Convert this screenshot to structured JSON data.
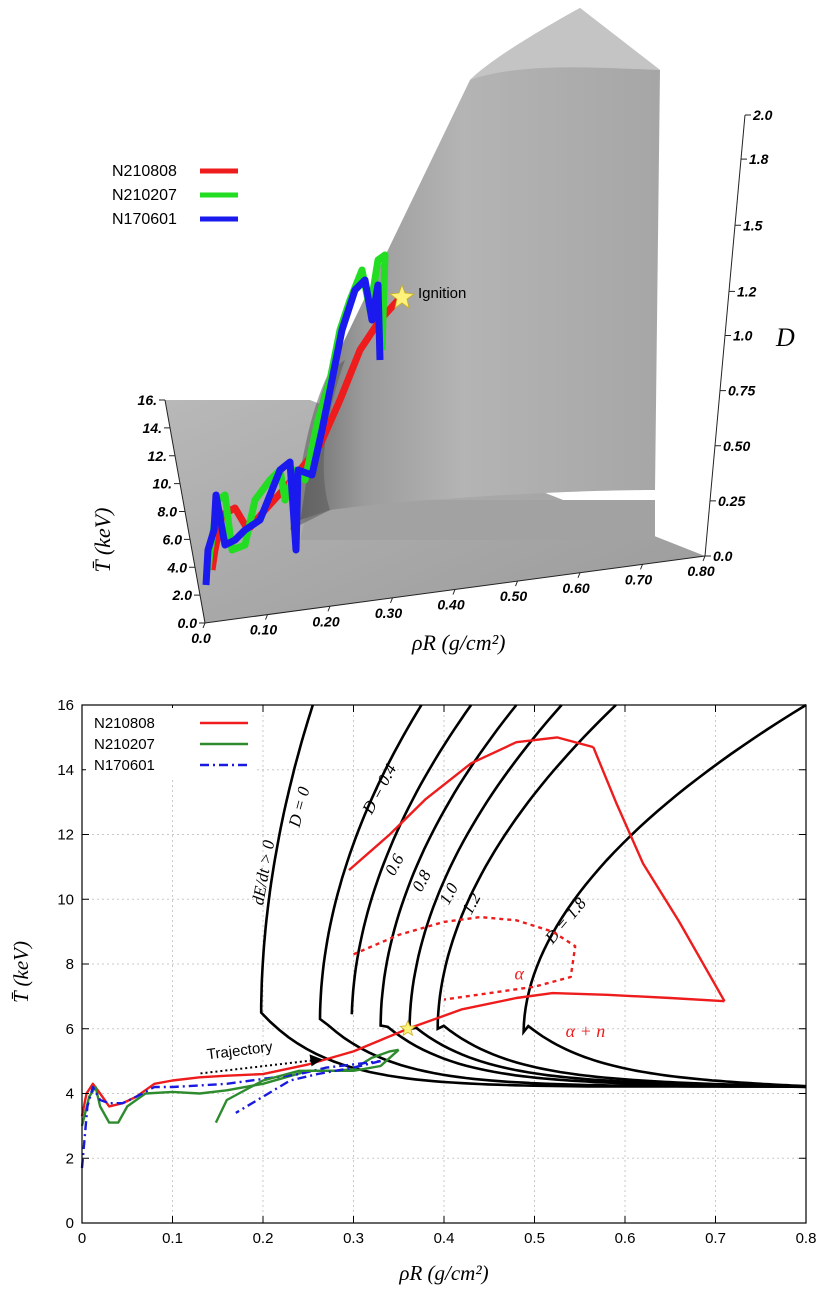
{
  "top_panel": {
    "legend": [
      {
        "name": "N210808",
        "color": "#ee1c1c"
      },
      {
        "name": "N210207",
        "color": "#22dd22"
      },
      {
        "name": "N170601",
        "color": "#1a1aee"
      }
    ],
    "ignition_label": "Ignition",
    "x_title": "ρR  (g/cm²)",
    "y_title": "T̄  (keV)",
    "z_title": "D",
    "x_ticks": [
      "0.0",
      "0.10",
      "0.20",
      "0.30",
      "0.40",
      "0.50",
      "0.60",
      "0.70",
      "0.80"
    ],
    "y_ticks": [
      "0.0",
      "2.0",
      "4.0",
      "6.0",
      "8.0",
      "10.",
      "12.",
      "14.",
      "16."
    ],
    "z_ticks": [
      "0.0",
      "0.25",
      "0.50",
      "0.75",
      "1.0",
      "1.2",
      "1.5",
      "1.8",
      "2.0"
    ],
    "surface_color": "#a8a8a8"
  },
  "chart_data": [
    {
      "type": "line",
      "title": "",
      "xlabel": "ρR  (g/cm²)",
      "ylabel": "T̄  (keV)",
      "xlim": [
        0,
        0.8
      ],
      "ylim": [
        0,
        16
      ],
      "grid": true,
      "legend_position": "top-left",
      "x_ticks": [
        "0",
        "0.1",
        "0.2",
        "0.3",
        "0.4",
        "0.5",
        "0.6",
        "0.7",
        "0.8"
      ],
      "y_ticks": [
        "0",
        "2",
        "4",
        "6",
        "8",
        "10",
        "12",
        "14",
        "16"
      ],
      "series": [
        {
          "name": "N210808",
          "color": "#ee1c1c",
          "style": "solid",
          "x": [
            0.0,
            0.005,
            0.012,
            0.02,
            0.03,
            0.045,
            0.06,
            0.08,
            0.1,
            0.13,
            0.16,
            0.2,
            0.25,
            0.3,
            0.36,
            0.42,
            0.48,
            0.52,
            0.58,
            0.65,
            0.71
          ],
          "y": [
            3.3,
            4.0,
            4.3,
            4.0,
            3.6,
            3.7,
            3.9,
            4.3,
            4.4,
            4.5,
            4.55,
            4.6,
            4.9,
            5.3,
            6.0,
            6.6,
            6.95,
            7.1,
            7.05,
            6.95,
            6.85
          ]
        },
        {
          "name": "N210207",
          "color": "#2e8b2e",
          "style": "solid",
          "x": [
            0.0,
            0.008,
            0.015,
            0.02,
            0.03,
            0.04,
            0.05,
            0.07,
            0.1,
            0.13,
            0.16,
            0.2,
            0.25,
            0.28,
            0.3,
            0.32,
            0.34,
            0.35
          ],
          "y": [
            3.0,
            3.9,
            4.2,
            3.6,
            3.1,
            3.1,
            3.6,
            4.0,
            4.05,
            4.0,
            4.1,
            4.3,
            4.7,
            4.7,
            4.75,
            5.1,
            5.3,
            5.35
          ]
        },
        {
          "name": "N170601",
          "color": "#1a1adf",
          "style": "dashdot",
          "x": [
            0.0,
            0.006,
            0.012,
            0.02,
            0.03,
            0.045,
            0.06,
            0.08,
            0.1,
            0.13,
            0.16,
            0.2,
            0.24,
            0.27,
            0.3,
            0.33
          ],
          "y": [
            1.7,
            3.6,
            4.2,
            3.8,
            3.7,
            3.7,
            3.9,
            4.2,
            4.2,
            4.25,
            4.3,
            4.45,
            4.6,
            4.8,
            4.9,
            5.0
          ]
        }
      ],
      "extra_lines": [
        {
          "id": "N210808-late",
          "color": "#ee1c1c",
          "style": "solid",
          "x": [
            0.71,
            0.66,
            0.62,
            0.59,
            0.565
          ],
          "y": [
            6.85,
            9.3,
            11.1,
            13.0,
            14.7
          ]
        },
        {
          "id": "N210808-late-2",
          "color": "#ee1c1c",
          "style": "solid",
          "x": [
            0.565,
            0.525,
            0.48,
            0.43,
            0.38,
            0.34,
            0.295
          ],
          "y": [
            14.7,
            15.0,
            14.85,
            14.2,
            13.1,
            12.0,
            10.9
          ]
        },
        {
          "id": "N210207-tail",
          "color": "#2e8b2e",
          "style": "solid",
          "x": [
            0.35,
            0.33,
            0.3,
            0.27,
            0.24,
            0.2,
            0.16,
            0.148
          ],
          "y": [
            5.35,
            4.85,
            4.7,
            4.7,
            4.7,
            4.4,
            3.8,
            3.1
          ]
        },
        {
          "id": "N170601-tail",
          "color": "#1a1adf",
          "style": "dashdot",
          "x": [
            0.33,
            0.3,
            0.26,
            0.23,
            0.2,
            0.17
          ],
          "y": [
            5.0,
            4.8,
            4.6,
            4.4,
            3.9,
            3.4
          ]
        }
      ],
      "model_curves": {
        "label_for_each": [
          "D = 0",
          "D = 0.4",
          "0.6",
          "0.8",
          "1.0",
          "1.2",
          "D = 1.8"
        ],
        "D_values": [
          0,
          0.4,
          0.6,
          0.8,
          1.0,
          1.2,
          1.8
        ],
        "nose_rhoR": [
          0.198,
          0.263,
          0.298,
          0.33,
          0.362,
          0.393,
          0.488
        ],
        "nose_T": [
          6.5,
          6.3,
          6.2,
          6.1,
          6.0,
          6.0,
          5.9
        ],
        "top_rhoR_at_T16": [
          0.255,
          0.375,
          0.43,
          0.48,
          0.53,
          0.59,
          0.8
        ],
        "asymptote_T": 4.2,
        "color": "#000000"
      },
      "dotted_boundary": {
        "x": [
          0.3,
          0.35,
          0.4,
          0.44,
          0.48,
          0.52,
          0.545,
          0.54,
          0.5,
          0.45,
          0.4
        ],
        "y": [
          8.3,
          8.9,
          9.3,
          9.45,
          9.35,
          9.0,
          8.55,
          7.6,
          7.3,
          7.1,
          6.9
        ],
        "color": "#ee1c1c"
      },
      "ignition_point": {
        "x": 0.36,
        "y": 6.0
      },
      "annotations": [
        {
          "text": "dE/dt > 0",
          "x": 0.2,
          "y": 9.8
        },
        {
          "text": "α",
          "x": 0.5,
          "y": 7.4
        },
        {
          "text": "α + n",
          "x": 0.53,
          "y": 6.0
        },
        {
          "text": "Trajectory",
          "x": 0.1,
          "y": 5.3
        }
      ]
    }
  ]
}
